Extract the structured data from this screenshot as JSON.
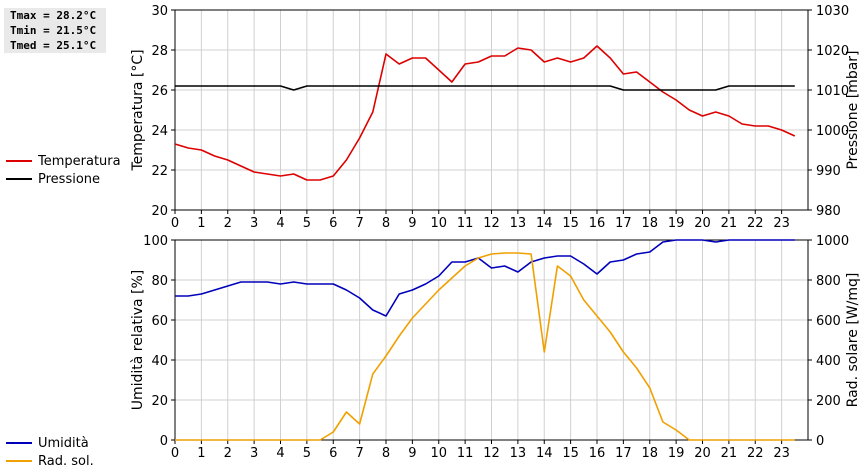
{
  "stats": {
    "tmax": "Tmax = 28.2°C",
    "tmin": "Tmin = 21.5°C",
    "tmed": "Tmed = 25.1°C"
  },
  "legend_top": [
    {
      "label": "Temperatura",
      "color": "#dd0000"
    },
    {
      "label": "Pressione",
      "color": "#000000"
    }
  ],
  "legend_bottom": [
    {
      "label": "Umidità",
      "color": "#0000bb"
    },
    {
      "label": "Rad. sol.",
      "color": "#f0a000"
    }
  ],
  "chart_data": [
    {
      "type": "line",
      "ylabel": "Temperatura [°C]",
      "ylabel_right": "Pressione [mbar]",
      "xlim": [
        0,
        24
      ],
      "xticks": [
        0,
        1,
        2,
        3,
        4,
        5,
        6,
        7,
        8,
        9,
        10,
        11,
        12,
        13,
        14,
        15,
        16,
        17,
        18,
        19,
        20,
        21,
        22,
        23
      ],
      "ylim": [
        20,
        30
      ],
      "yticks": [
        20,
        22,
        24,
        26,
        28,
        30
      ],
      "ylim_right": [
        980,
        1030
      ],
      "yticks_right": [
        980,
        990,
        1000,
        1010,
        1020,
        1030
      ],
      "grid": true,
      "series": [
        {
          "name": "Temperatura",
          "axis": "left",
          "color": "#dd0000",
          "x": [
            0,
            0.5,
            1,
            1.5,
            2,
            2.5,
            3,
            3.5,
            4,
            4.5,
            5,
            5.5,
            6,
            6.5,
            7,
            7.5,
            8,
            8.5,
            9,
            9.5,
            10,
            10.5,
            11,
            11.5,
            12,
            12.5,
            13,
            13.5,
            14,
            14.5,
            15,
            15.5,
            16,
            16.5,
            17,
            17.5,
            18,
            18.5,
            19,
            19.5,
            20,
            20.5,
            21,
            21.5,
            22,
            22.5,
            23,
            23.5
          ],
          "y": [
            23.3,
            23.1,
            23.0,
            22.7,
            22.5,
            22.2,
            21.9,
            21.8,
            21.7,
            21.8,
            21.5,
            21.5,
            21.7,
            22.5,
            23.6,
            24.9,
            27.8,
            27.3,
            27.6,
            27.6,
            27.0,
            26.4,
            27.3,
            27.4,
            27.7,
            27.7,
            28.1,
            28.0,
            27.4,
            27.6,
            27.4,
            27.6,
            28.2,
            27.6,
            26.8,
            26.9,
            26.4,
            25.9,
            25.5,
            25.0,
            24.7,
            24.9,
            24.7,
            24.3,
            24.2,
            24.2,
            24.0,
            23.7
          ]
        },
        {
          "name": "Pressione",
          "axis": "right",
          "color": "#000000",
          "x": [
            0,
            0.5,
            1,
            1.5,
            2,
            2.5,
            3,
            3.5,
            4,
            4.5,
            5,
            5.5,
            6,
            6.5,
            7,
            7.5,
            8,
            8.5,
            9,
            9.5,
            10,
            10.5,
            11,
            11.5,
            12,
            12.5,
            13,
            13.5,
            14,
            14.5,
            15,
            15.5,
            16,
            16.5,
            17,
            17.5,
            18,
            18.5,
            19,
            19.5,
            20,
            20.5,
            21,
            21.5,
            22,
            22.5,
            23,
            23.5
          ],
          "y": [
            1011,
            1011,
            1011,
            1011,
            1011,
            1011,
            1011,
            1011,
            1011,
            1010,
            1011,
            1011,
            1011,
            1011,
            1011,
            1011,
            1011,
            1011,
            1011,
            1011,
            1011,
            1011,
            1011,
            1011,
            1011,
            1011,
            1011,
            1011,
            1011,
            1011,
            1011,
            1011,
            1011,
            1011,
            1010,
            1010,
            1010,
            1010,
            1010,
            1010,
            1010,
            1010,
            1011,
            1011,
            1011,
            1011,
            1011,
            1011
          ]
        }
      ]
    },
    {
      "type": "line",
      "ylabel": "Umidità relativa [%]",
      "ylabel_right": "Rad. solare [W/mq]",
      "xlim": [
        0,
        24
      ],
      "xticks": [
        0,
        1,
        2,
        3,
        4,
        5,
        6,
        7,
        8,
        9,
        10,
        11,
        12,
        13,
        14,
        15,
        16,
        17,
        18,
        19,
        20,
        21,
        22,
        23
      ],
      "ylim": [
        0,
        100
      ],
      "yticks": [
        0,
        20,
        40,
        60,
        80,
        100
      ],
      "ylim_right": [
        0,
        1000
      ],
      "yticks_right": [
        0,
        200,
        400,
        600,
        800,
        1000
      ],
      "grid": true,
      "series": [
        {
          "name": "Umidità",
          "axis": "left",
          "color": "#0000bb",
          "x": [
            0,
            0.5,
            1,
            1.5,
            2,
            2.5,
            3,
            3.5,
            4,
            4.5,
            5,
            5.5,
            6,
            6.5,
            7,
            7.5,
            8,
            8.5,
            9,
            9.5,
            10,
            10.5,
            11,
            11.5,
            12,
            12.5,
            13,
            13.5,
            14,
            14.5,
            15,
            15.5,
            16,
            16.5,
            17,
            17.5,
            18,
            18.5,
            19,
            19.5,
            20,
            20.5,
            21,
            21.5,
            22,
            22.5,
            23,
            23.5
          ],
          "y": [
            72,
            72,
            73,
            75,
            77,
            79,
            79,
            79,
            78,
            79,
            78,
            78,
            78,
            75,
            71,
            65,
            62,
            73,
            75,
            78,
            82,
            89,
            89,
            91,
            86,
            87,
            84,
            89,
            91,
            92,
            92,
            88,
            83,
            89,
            90,
            93,
            94,
            99,
            100,
            100,
            100,
            99,
            100,
            100,
            100,
            100,
            100,
            100
          ]
        },
        {
          "name": "Rad. sol.",
          "axis": "right",
          "color": "#f0a000",
          "x": [
            0,
            0.5,
            1,
            1.5,
            2,
            2.5,
            3,
            3.5,
            4,
            4.5,
            5,
            5.5,
            6,
            6.5,
            7,
            7.5,
            8,
            8.5,
            9,
            9.5,
            10,
            10.5,
            11,
            11.5,
            12,
            12.5,
            13,
            13.5,
            14,
            14.5,
            15,
            15.5,
            16,
            16.5,
            17,
            17.5,
            18,
            18.5,
            19,
            19.5,
            20,
            20.5,
            21,
            21.5,
            22,
            22.5,
            23,
            23.5
          ],
          "y": [
            0,
            0,
            0,
            0,
            0,
            0,
            0,
            0,
            0,
            0,
            0,
            0,
            40,
            140,
            80,
            330,
            420,
            520,
            610,
            680,
            750,
            810,
            870,
            910,
            930,
            935,
            935,
            930,
            440,
            870,
            820,
            700,
            620,
            540,
            440,
            360,
            260,
            90,
            50,
            0,
            0,
            0,
            0,
            0,
            0,
            0,
            0,
            0
          ]
        }
      ]
    }
  ]
}
